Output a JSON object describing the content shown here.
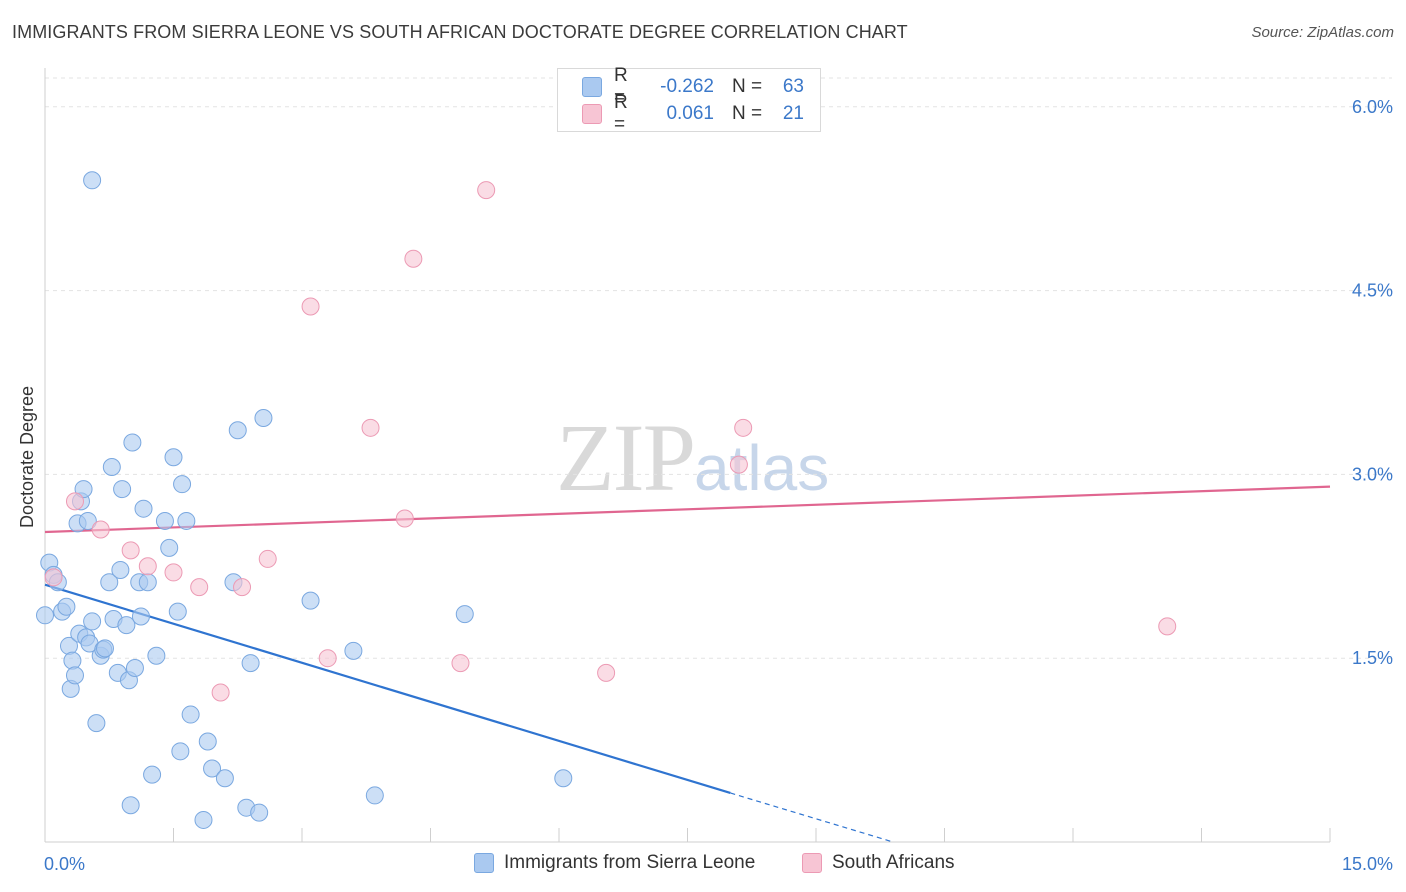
{
  "title": "IMMIGRANTS FROM SIERRA LEONE VS SOUTH AFRICAN DOCTORATE DEGREE CORRELATION CHART",
  "source": "Source: ZipAtlas.com",
  "watermark": {
    "zip": "ZIP",
    "atlas": "atlas"
  },
  "legend": {
    "rows": [
      {
        "r_label": "R =",
        "r_value": "-0.262",
        "n_label": "N =",
        "n_value": "63",
        "color": "#aac9f0",
        "border": "#7aa8e0"
      },
      {
        "r_label": "R =",
        "r_value": "0.061",
        "n_label": "N =",
        "n_value": "21",
        "color": "#f7c5d4",
        "border": "#ec9ab4"
      }
    ]
  },
  "bottom_legend": [
    {
      "label": "Immigrants from Sierra Leone",
      "color": "#aac9f0",
      "border": "#7aa8e0"
    },
    {
      "label": "South Africans",
      "color": "#f7c5d4",
      "border": "#ec9ab4"
    }
  ],
  "chart_data": {
    "type": "scatter",
    "title": "IMMIGRANTS FROM SIERRA LEONE VS SOUTH AFRICAN DOCTORATE DEGREE CORRELATION CHART",
    "ylabel": "Doctorate Degree",
    "xlabel": "",
    "xlim": [
      0,
      15
    ],
    "ylim": [
      0,
      6.3
    ],
    "x_tick_labels": [
      "0.0%",
      "15.0%"
    ],
    "y_ticks": [
      1.5,
      3.0,
      4.5,
      6.0
    ],
    "y_tick_labels": [
      "1.5%",
      "3.0%",
      "4.5%",
      "6.0%"
    ],
    "grid": true,
    "series": [
      {
        "name": "Immigrants from Sierra Leone",
        "color": "#aac9f0",
        "stroke": "#7aa8e0",
        "line_color": "#2f74d0",
        "trend": {
          "x": [
            0,
            8.0
          ],
          "y": [
            2.1,
            0.4
          ],
          "dash_to": [
            9.9,
            0.0
          ]
        },
        "points": [
          [
            0.55,
            5.4
          ],
          [
            0.0,
            1.85
          ],
          [
            0.05,
            2.28
          ],
          [
            0.1,
            2.18
          ],
          [
            0.15,
            2.12
          ],
          [
            0.2,
            1.88
          ],
          [
            0.25,
            1.92
          ],
          [
            0.28,
            1.6
          ],
          [
            0.3,
            1.25
          ],
          [
            0.32,
            1.48
          ],
          [
            0.35,
            1.36
          ],
          [
            0.38,
            2.6
          ],
          [
            0.4,
            1.7
          ],
          [
            0.42,
            2.78
          ],
          [
            0.45,
            2.88
          ],
          [
            0.48,
            1.67
          ],
          [
            0.5,
            2.62
          ],
          [
            0.52,
            1.62
          ],
          [
            0.55,
            1.8
          ],
          [
            0.6,
            0.97
          ],
          [
            0.65,
            1.52
          ],
          [
            0.68,
            1.57
          ],
          [
            0.7,
            1.58
          ],
          [
            0.75,
            2.12
          ],
          [
            0.78,
            3.06
          ],
          [
            0.8,
            1.82
          ],
          [
            0.85,
            1.38
          ],
          [
            0.88,
            2.22
          ],
          [
            0.9,
            2.88
          ],
          [
            0.95,
            1.77
          ],
          [
            0.98,
            1.32
          ],
          [
            1.0,
            0.3
          ],
          [
            1.02,
            3.26
          ],
          [
            1.05,
            1.42
          ],
          [
            1.1,
            2.12
          ],
          [
            1.12,
            1.84
          ],
          [
            1.15,
            2.72
          ],
          [
            1.2,
            2.12
          ],
          [
            1.25,
            0.55
          ],
          [
            1.3,
            1.52
          ],
          [
            1.4,
            2.62
          ],
          [
            1.45,
            2.4
          ],
          [
            1.5,
            3.14
          ],
          [
            1.55,
            1.88
          ],
          [
            1.58,
            0.74
          ],
          [
            1.6,
            2.92
          ],
          [
            1.65,
            2.62
          ],
          [
            1.7,
            1.04
          ],
          [
            1.85,
            0.18
          ],
          [
            1.9,
            0.82
          ],
          [
            1.95,
            0.6
          ],
          [
            2.1,
            0.52
          ],
          [
            2.2,
            2.12
          ],
          [
            2.25,
            3.36
          ],
          [
            2.35,
            0.28
          ],
          [
            2.4,
            1.46
          ],
          [
            2.5,
            0.24
          ],
          [
            2.55,
            3.46
          ],
          [
            3.1,
            1.97
          ],
          [
            3.6,
            1.56
          ],
          [
            3.85,
            0.38
          ],
          [
            4.9,
            1.86
          ],
          [
            6.05,
            0.52
          ]
        ]
      },
      {
        "name": "South Africans",
        "color": "#f7c5d4",
        "stroke": "#ec9ab4",
        "line_color": "#e06690",
        "trend": {
          "x": [
            0,
            15.0
          ],
          "y": [
            2.53,
            2.9
          ]
        },
        "points": [
          [
            0.1,
            2.16
          ],
          [
            0.35,
            2.78
          ],
          [
            0.65,
            2.55
          ],
          [
            1.0,
            2.38
          ],
          [
            1.2,
            2.25
          ],
          [
            1.5,
            2.2
          ],
          [
            1.8,
            2.08
          ],
          [
            2.05,
            1.22
          ],
          [
            2.3,
            2.08
          ],
          [
            2.6,
            2.31
          ],
          [
            3.1,
            4.37
          ],
          [
            3.3,
            1.5
          ],
          [
            3.8,
            3.38
          ],
          [
            4.2,
            2.64
          ],
          [
            4.3,
            4.76
          ],
          [
            4.85,
            1.46
          ],
          [
            5.15,
            5.32
          ],
          [
            6.55,
            1.38
          ],
          [
            8.1,
            3.08
          ],
          [
            8.15,
            3.38
          ],
          [
            13.1,
            1.76
          ]
        ]
      }
    ]
  }
}
